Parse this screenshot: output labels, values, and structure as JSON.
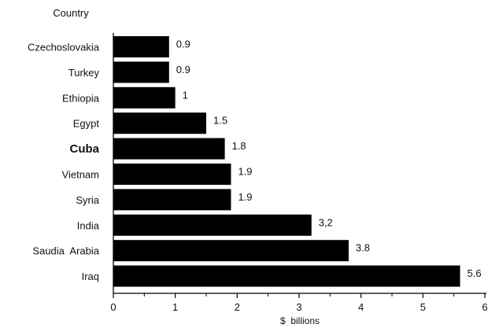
{
  "chart_data": {
    "type": "bar",
    "orientation": "horizontal",
    "ylabel": "Country",
    "xlabel": "$  billions",
    "xlim": [
      0,
      6
    ],
    "x_ticks": [
      "0",
      "1",
      "2",
      "3",
      "4",
      "5",
      "6"
    ],
    "grid": false,
    "categories": [
      "Czechoslovakia",
      "Turkey",
      "Ethiopia",
      "Egypt",
      "Cuba",
      "Vietnam",
      "Syria",
      "India",
      "Saudia  Arabia",
      "Iraq"
    ],
    "values": [
      0.9,
      0.9,
      1,
      1.5,
      1.8,
      1.9,
      1.9,
      3.2,
      3.8,
      5.6
    ],
    "data_labels": [
      "0.9",
      "0.9",
      "1",
      "1.5",
      "1.8",
      "1.9",
      "1.9",
      "3,2",
      "3.8",
      "5.6"
    ],
    "emphasized_category": "Cuba",
    "bar_color": "#000000"
  }
}
